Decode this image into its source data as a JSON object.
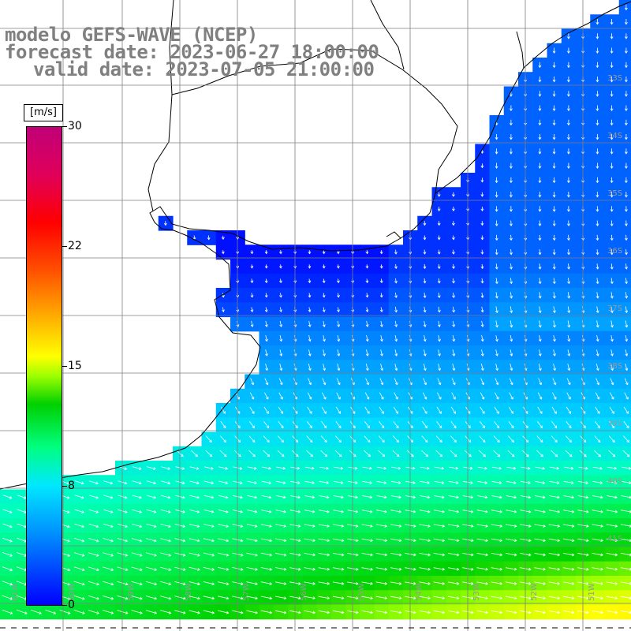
{
  "title": {
    "line1": "modelo GEFS-WAVE (NCEP)",
    "line2": "forecast date: 2023-06-27 18:00:00",
    "line3": "valid date: 2023-07-05 21:00:00"
  },
  "colorbar": {
    "unit": "[m/s]",
    "ticks": [
      "30",
      "22",
      "15",
      "8",
      "0"
    ],
    "tick_values": [
      30,
      22,
      15,
      8,
      0
    ],
    "colors": [
      "#0000ff",
      "#00e8ff",
      "#00d000",
      "#ffff00",
      "#ff0000",
      "#c00078"
    ]
  },
  "axes": {
    "lat_labels": [
      "33S",
      "34S",
      "35S",
      "36S",
      "37S",
      "38S",
      "39S",
      "40S",
      "41S"
    ],
    "lon_labels": [
      "61W",
      "60W",
      "59W",
      "58W",
      "57W",
      "56W",
      "55W",
      "54W",
      "53W",
      "52W",
      "51W"
    ]
  },
  "map_colors": {
    "land": "#ffffff",
    "coast": "#000000",
    "grid": "#7f7f7f",
    "arrow": "#ffffff"
  }
}
